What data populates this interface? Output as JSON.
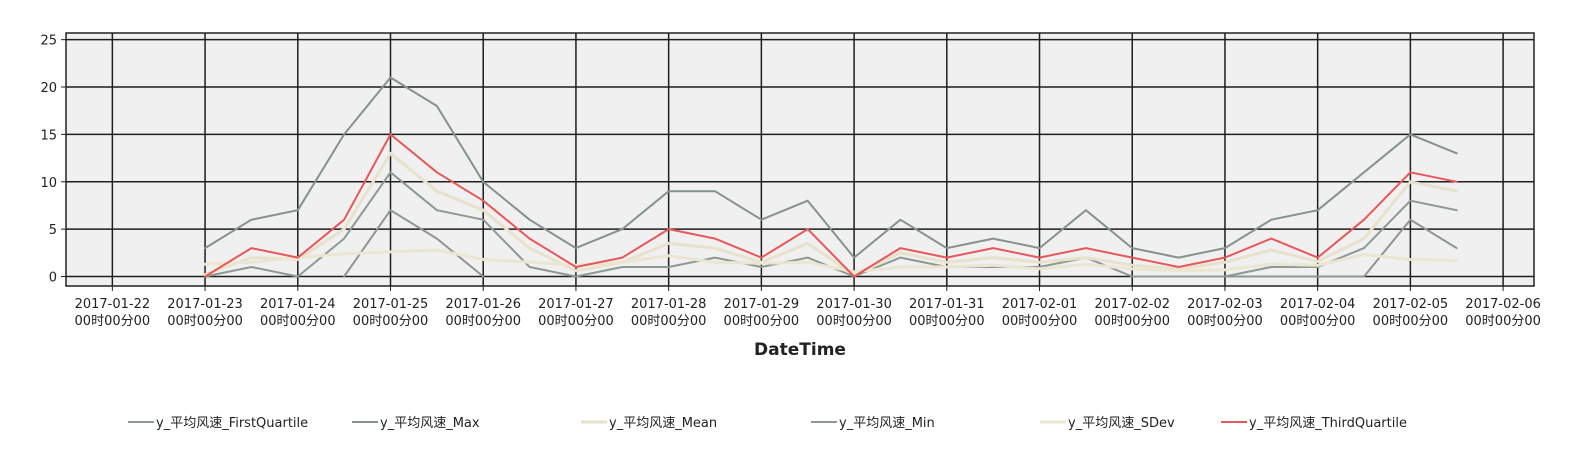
{
  "chart_data": {
    "type": "line",
    "xlabel": "DateTime",
    "ylabel": "",
    "ylim": [
      -1,
      25.7
    ],
    "y_ticks": [
      0,
      5,
      10,
      15,
      20,
      25
    ],
    "x_ticks": [
      {
        "line1": "2017-01-22",
        "line2": "00时00分00"
      },
      {
        "line1": "2017-01-23",
        "line2": "00时00分00"
      },
      {
        "line1": "2017-01-24",
        "line2": "00时00分00"
      },
      {
        "line1": "2017-01-25",
        "line2": "00时00分00"
      },
      {
        "line1": "2017-01-26",
        "line2": "00时00分00"
      },
      {
        "line1": "2017-01-27",
        "line2": "00时00分00"
      },
      {
        "line1": "2017-01-28",
        "line2": "00时00分00"
      },
      {
        "line1": "2017-01-29",
        "line2": "00时00分00"
      },
      {
        "line1": "2017-01-30",
        "line2": "00时00分00"
      },
      {
        "line1": "2017-01-31",
        "line2": "00时00分00"
      },
      {
        "line1": "2017-02-01",
        "line2": "00时00分00"
      },
      {
        "line1": "2017-02-02",
        "line2": "00时00分00"
      },
      {
        "line1": "2017-02-03",
        "line2": "00时00分00"
      },
      {
        "line1": "2017-02-04",
        "line2": "00时00分00"
      },
      {
        "line1": "2017-02-05",
        "line2": "00时00分00"
      },
      {
        "line1": "2017-02-06",
        "line2": "00时00分00"
      }
    ],
    "x": [
      "2017-01-23 00:00",
      "2017-01-23 12:00",
      "2017-01-24 00:00",
      "2017-01-24 12:00",
      "2017-01-25 00:00",
      "2017-01-25 12:00",
      "2017-01-26 00:00",
      "2017-01-26 12:00",
      "2017-01-27 00:00",
      "2017-01-27 12:00",
      "2017-01-28 00:00",
      "2017-01-28 12:00",
      "2017-01-29 00:00",
      "2017-01-29 12:00",
      "2017-01-30 00:00",
      "2017-01-30 12:00",
      "2017-01-31 00:00",
      "2017-01-31 12:00",
      "2017-02-01 00:00",
      "2017-02-01 12:00",
      "2017-02-02 00:00",
      "2017-02-02 12:00",
      "2017-02-03 00:00",
      "2017-02-03 12:00",
      "2017-02-04 00:00",
      "2017-02-04 12:00",
      "2017-02-05 00:00",
      "2017-02-05 12:00"
    ],
    "x_range": [
      "2017-01-21 12:00",
      "2017-02-06 08:00"
    ],
    "grid": true,
    "legend_position": "bottom",
    "plot_background": "#f0f0f0",
    "series": [
      {
        "name": "y_平均风速_FirstQuartile",
        "color": "#8c9a93",
        "width": 2,
        "values": [
          0,
          1,
          0,
          4,
          11,
          7,
          6,
          1,
          0,
          1,
          1,
          2,
          1,
          2,
          0,
          2,
          1,
          1,
          1,
          2,
          0,
          0,
          0,
          1,
          1,
          3,
          8,
          7
        ]
      },
      {
        "name": "y_平均风速_Max",
        "color": "#86928c",
        "width": 2,
        "values": [
          3,
          6,
          7,
          15,
          21,
          18,
          10,
          6,
          3,
          5,
          9,
          9,
          6,
          8,
          2,
          6,
          3,
          4,
          3,
          7,
          3,
          2,
          3,
          6,
          7,
          11,
          15,
          13
        ]
      },
      {
        "name": "y_平均风速_Mean",
        "color": "#e8e2cc",
        "width": 3,
        "values": [
          0.2,
          2,
          1.8,
          5,
          13,
          9,
          7,
          3,
          0.6,
          1.5,
          3.5,
          3,
          1.5,
          3.5,
          0.2,
          2.5,
          1.5,
          2,
          1.5,
          2,
          1.2,
          0.8,
          1.5,
          2.8,
          1.6,
          4,
          10,
          9
        ]
      },
      {
        "name": "y_平均风速_Min",
        "color": "#8e9692",
        "width": 2,
        "values": [
          null,
          null,
          null,
          0,
          7,
          4,
          0,
          null,
          null,
          null,
          null,
          null,
          null,
          null,
          0,
          null,
          null,
          null,
          null,
          null,
          null,
          null,
          0,
          0,
          0,
          0,
          6,
          3
        ]
      },
      {
        "name": "y_平均风速_SDev",
        "color": "#ebe6d2",
        "width": 3,
        "values": [
          1.3,
          1.5,
          2,
          2.4,
          2.6,
          2.8,
          1.8,
          1.5,
          1.2,
          1.5,
          2.2,
          1.5,
          1.4,
          1.5,
          0.5,
          1,
          1,
          1.2,
          0.8,
          1.3,
          0.8,
          0.6,
          0.7,
          1.3,
          1.2,
          2.3,
          1.8,
          1.7
        ]
      },
      {
        "name": "y_平均风速_ThirdQuartile",
        "color": "#e8585a",
        "width": 2,
        "values": [
          0,
          3,
          2,
          6,
          15,
          11,
          8,
          4,
          1,
          2,
          5,
          4,
          2,
          5,
          0,
          3,
          2,
          3,
          2,
          3,
          2,
          1,
          2,
          4,
          2,
          6,
          11,
          10
        ]
      }
    ]
  }
}
